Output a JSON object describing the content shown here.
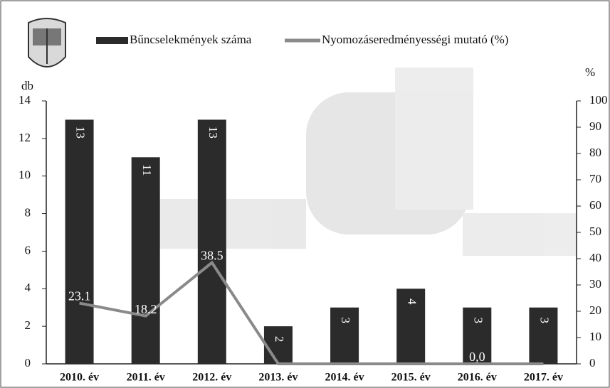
{
  "chart_data": {
    "type": "bar",
    "categories": [
      "2010. év",
      "2011. év",
      "2012. év",
      "2013. év",
      "2014. év",
      "2015. év",
      "2016. év",
      "2017. év"
    ],
    "series": [
      {
        "name": "Bűncselekmények száma",
        "color": "#2b2b2b",
        "type": "bar",
        "values": [
          13,
          11,
          13,
          2,
          3,
          4,
          3,
          3
        ]
      },
      {
        "name": "Nyomozáseredményességi mutató (%)",
        "color": "#8a8a8a",
        "type": "line",
        "axis": "y2",
        "values": [
          23.1,
          18.2,
          38.5,
          0,
          0,
          0,
          0,
          0
        ],
        "value_labels": [
          "23.1",
          "18.2",
          "38.5",
          null,
          null,
          null,
          "0,0",
          null
        ]
      }
    ],
    "y_label": "db",
    "y2_label": "%",
    "ylim": [
      0,
      14
    ],
    "yticks": [
      0,
      2,
      4,
      6,
      8,
      10,
      12,
      14
    ],
    "y2lim": [
      0,
      100
    ],
    "y2ticks": [
      0,
      10,
      20,
      30,
      40,
      50,
      60,
      70,
      80,
      90,
      100
    ]
  }
}
